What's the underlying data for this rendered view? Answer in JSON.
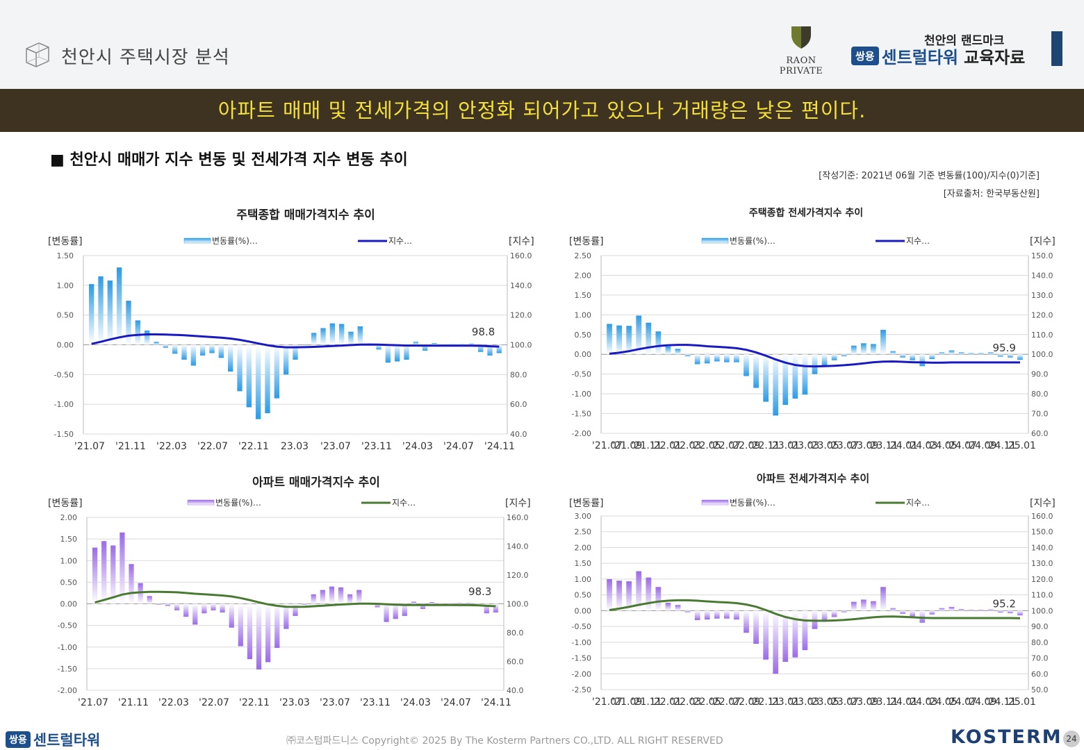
{
  "header": {
    "title": "천안시 주택시장 분석",
    "logo_text": "RAON PRIVATE",
    "brand_sub": "천안의 랜드마크",
    "brand_badge": "쌍용",
    "brand_name": "센트럴타워",
    "brand_suffix": "교육자료"
  },
  "banner": "아파트 매매 및 전세가격의 안정화 되어가고 있으나 거래량은 낮은 편이다.",
  "section_title": "■ 천안시 매매가 지수 변동 및 전세가격 지수 변동 추이",
  "notes": {
    "basis": "[작성기준: 2021년 06월 기준 변동률(100)/지수(0)기준]",
    "source": "[자료출처: 한국부동산원]"
  },
  "colors": {
    "bar_blue": "#2b9be6",
    "bar_purple": "#9a6be8",
    "line_navy": "#1919c0",
    "line_green": "#4a7a32",
    "banner_bg": "#3e3320",
    "banner_text": "#f4e03a"
  },
  "chart_data": [
    {
      "id": "c1",
      "type": "bar+line",
      "title": "주택종합 매매가격지수 추이",
      "ylabel_left": "[변동률]",
      "ylabel_right": "[지수]",
      "legend": [
        "변동률(%)…",
        "지수…"
      ],
      "ylim_left": [
        -1.5,
        1.5
      ],
      "yticks_left": [
        "1.50",
        "1.00",
        "0.50",
        "0.00",
        "-0.50",
        "-1.00",
        "-1.50"
      ],
      "ylim_right": [
        40,
        160
      ],
      "yticks_right": [
        "160.0",
        "140.0",
        "120.0",
        "100.0",
        "80.0",
        "60.0",
        "40.0"
      ],
      "x_tick_labels": [
        "'21.07",
        "'21.11",
        "'22.03",
        "'22.07",
        "'22.11",
        "23.03",
        "'23.07",
        "'23.11",
        "'24.03",
        "'24.07",
        "'24.11"
      ],
      "bar_color": "blue",
      "line_color": "navy",
      "end_label": "98.8",
      "bars": [
        1.02,
        1.15,
        1.08,
        1.3,
        0.74,
        0.41,
        0.24,
        0.05,
        -0.05,
        -0.15,
        -0.25,
        -0.35,
        -0.18,
        -0.14,
        -0.22,
        -0.45,
        -0.78,
        -1.05,
        -1.25,
        -1.15,
        -0.9,
        -0.5,
        -0.25,
        0.0,
        0.2,
        0.28,
        0.36,
        0.35,
        0.22,
        0.31,
        0.02,
        -0.08,
        -0.3,
        -0.28,
        -0.25,
        0.05,
        -0.1,
        0.03,
        -0.02,
        0.01,
        0.01,
        0.02,
        -0.12,
        -0.18,
        -0.14
      ],
      "index": [
        100.6,
        102.0,
        103.6,
        105.0,
        106.1,
        106.7,
        107.0,
        107.0,
        106.9,
        106.7,
        106.4,
        106.0,
        105.6,
        105.2,
        104.8,
        104.2,
        103.3,
        102.2,
        100.9,
        99.7,
        98.8,
        98.3,
        98.3,
        98.4,
        98.6,
        98.9,
        99.2,
        99.5,
        99.8,
        100.1,
        100.2,
        100.1,
        99.9,
        99.7,
        99.5,
        99.5,
        99.4,
        99.4,
        99.4,
        99.4,
        99.4,
        99.4,
        99.3,
        99.0,
        98.8
      ]
    },
    {
      "id": "c2",
      "type": "bar+line",
      "title": "주택종합 전세가격지수 추이",
      "ylabel_left": "[변동률]",
      "ylabel_right": "[지수]",
      "legend": [
        "변동률(%)…",
        "지수…"
      ],
      "ylim_left": [
        -2.0,
        2.5
      ],
      "yticks_left": [
        "2.50",
        "2.00",
        "1.50",
        "1.00",
        "0.50",
        "0.00",
        "-0.50",
        "-1.00",
        "-1.50",
        "-2.00"
      ],
      "ylim_right": [
        60,
        150
      ],
      "yticks_right": [
        "150.0",
        "140.0",
        "130.0",
        "120.0",
        "110.0",
        "100.0",
        "90.0",
        "80.0",
        "70.0",
        "60.0"
      ],
      "x_tick_labels": [
        "'21.07",
        "'21.09",
        "'21.11",
        "'22.01",
        "'22.03",
        "'22.05",
        "'22.07",
        "'22.09",
        "'22.11",
        "'23.01",
        "'23.03",
        "'23.05",
        "'23.07",
        "'23.09",
        "'23.11",
        "'24.01",
        "'24.03",
        "'24.05",
        "'24.07",
        "'24.09",
        "'24.11",
        "'25.01"
      ],
      "bar_color": "blue",
      "line_color": "navy",
      "end_label": "95.9",
      "bars": [
        0.77,
        0.73,
        0.72,
        0.98,
        0.8,
        0.58,
        0.2,
        0.14,
        -0.05,
        -0.25,
        -0.23,
        -0.18,
        -0.2,
        -0.2,
        -0.55,
        -0.85,
        -1.2,
        -1.55,
        -1.28,
        -1.12,
        -1.02,
        -0.5,
        -0.3,
        -0.15,
        -0.05,
        0.22,
        0.28,
        0.26,
        0.62,
        0.08,
        -0.08,
        -0.15,
        -0.3,
        -0.12,
        0.05,
        0.1,
        0.05,
        0.03,
        0.03,
        0.05,
        -0.06,
        -0.08,
        -0.14
      ],
      "index": [
        100.3,
        100.8,
        101.6,
        102.6,
        103.5,
        104.2,
        104.6,
        104.8,
        104.8,
        104.5,
        104.1,
        103.8,
        103.5,
        103.1,
        102.3,
        101.0,
        99.3,
        97.4,
        95.8,
        94.6,
        94.0,
        93.9,
        94.0,
        94.2,
        94.5,
        94.9,
        95.4,
        96.0,
        96.3,
        96.4,
        96.2,
        96.0,
        95.9,
        95.8,
        95.8,
        95.9,
        95.9,
        95.9,
        95.9,
        95.9,
        95.9,
        95.9,
        95.9
      ]
    },
    {
      "id": "c3",
      "type": "bar+line",
      "title": "아파트 매매가격지수 추이",
      "ylabel_left": "[변동률]",
      "ylabel_right": "[지수]",
      "legend": [
        "변동률(%)…",
        "지수…"
      ],
      "ylim_left": [
        -2.0,
        2.0
      ],
      "yticks_left": [
        "2.00",
        "1.50",
        "1.00",
        "0.50",
        "0.00",
        "-0.50",
        "-1.00",
        "-1.50",
        "-2.00"
      ],
      "ylim_right": [
        40,
        160
      ],
      "yticks_right": [
        "160.0",
        "140.0",
        "120.0",
        "100.0",
        "80.0",
        "60.0",
        "40.0"
      ],
      "x_tick_labels": [
        "'21.07",
        "'21.11",
        "'22.03",
        "'22.07",
        "'22.11",
        "'23.03",
        "'23.07",
        "'23.11",
        "'24.03",
        "'24.07",
        "'24.11"
      ],
      "bar_color": "purple",
      "line_color": "green",
      "end_label": "98.3",
      "bars": [
        1.3,
        1.45,
        1.35,
        1.65,
        0.92,
        0.48,
        0.18,
        -0.02,
        -0.05,
        -0.15,
        -0.3,
        -0.48,
        -0.22,
        -0.15,
        -0.2,
        -0.55,
        -0.98,
        -1.28,
        -1.52,
        -1.35,
        -1.02,
        -0.58,
        -0.28,
        -0.02,
        0.22,
        0.32,
        0.4,
        0.38,
        0.22,
        0.32,
        0.0,
        -0.08,
        -0.42,
        -0.35,
        -0.28,
        0.05,
        -0.12,
        0.04,
        -0.02,
        0.01,
        0.02,
        0.02,
        -0.05,
        -0.22,
        -0.2
      ],
      "index": [
        100.9,
        102.7,
        104.5,
        106.4,
        107.5,
        108.0,
        108.3,
        108.3,
        108.2,
        108.0,
        107.5,
        107.0,
        106.6,
        106.2,
        105.8,
        105.1,
        104.0,
        102.6,
        101.0,
        99.6,
        98.6,
        98.0,
        97.9,
        98.0,
        98.3,
        98.7,
        99.1,
        99.5,
        99.8,
        100.1,
        100.1,
        100.0,
        99.7,
        99.4,
        99.2,
        99.2,
        99.2,
        99.2,
        99.2,
        99.2,
        99.1,
        99.1,
        99.0,
        98.6,
        98.3
      ]
    },
    {
      "id": "c4",
      "type": "bar+line",
      "title": "아파트 전세가격지수 추이",
      "ylabel_left": "[변동률]",
      "ylabel_right": "[지수]",
      "legend": [
        "변동률(%)…",
        "지수…"
      ],
      "ylim_left": [
        -2.5,
        3.0
      ],
      "yticks_left": [
        "3.00",
        "2.50",
        "2.00",
        "1.50",
        "1.00",
        "0.50",
        "0.00",
        "-0.50",
        "-1.00",
        "-1.50",
        "-2.00",
        "-2.50"
      ],
      "ylim_right": [
        50,
        160
      ],
      "yticks_right": [
        "160.0",
        "150.0",
        "140.0",
        "130.0",
        "120.0",
        "110.0",
        "100.0",
        "90.0",
        "80.0",
        "70.0",
        "60.0",
        "50.0"
      ],
      "x_tick_labels": [
        "'21.07",
        "'21.09",
        "'21.11",
        "'22.01",
        "'22.03",
        "'22.05",
        "'22.07",
        "'22.09",
        "'22.11",
        "'23.01",
        "'23.03",
        "'23.05",
        "'23.07",
        "'23.09",
        "'23.11",
        "'24.01",
        "'24.03",
        "'24.05",
        "'24.07",
        "'24.09",
        "'24.11",
        "'25.01"
      ],
      "bar_color": "purple",
      "line_color": "green",
      "end_label": "95.2",
      "bars": [
        1.0,
        0.95,
        0.93,
        1.25,
        1.05,
        0.75,
        0.25,
        0.18,
        -0.05,
        -0.3,
        -0.28,
        -0.25,
        -0.25,
        -0.28,
        -0.7,
        -1.05,
        -1.55,
        -2.0,
        -1.62,
        -1.48,
        -1.25,
        -0.58,
        -0.35,
        -0.2,
        -0.05,
        0.28,
        0.35,
        0.3,
        0.75,
        0.08,
        -0.1,
        -0.2,
        -0.38,
        -0.12,
        0.08,
        0.12,
        0.05,
        0.03,
        0.03,
        0.04,
        -0.06,
        -0.08,
        -0.15
      ],
      "index": [
        100.4,
        101.3,
        102.4,
        103.7,
        104.8,
        105.8,
        106.3,
        106.6,
        106.6,
        106.3,
        105.9,
        105.5,
        105.2,
        104.8,
        103.9,
        102.5,
        100.4,
        98.0,
        96.0,
        94.6,
        93.8,
        93.6,
        93.6,
        93.8,
        94.1,
        94.6,
        95.2,
        95.8,
        96.2,
        96.3,
        96.1,
        95.8,
        95.5,
        95.3,
        95.3,
        95.3,
        95.3,
        95.3,
        95.3,
        95.3,
        95.3,
        95.3,
        95.2
      ]
    }
  ],
  "footer": {
    "badge": "쌍용",
    "brand": "센트럴타워",
    "copyright": "㈜코스텀파드니스 Copyright© 2025 By The Kosterm Partners CO.,LTD. ALL RIGHT RESERVED",
    "logo": "KOSTERM",
    "page": "24"
  }
}
